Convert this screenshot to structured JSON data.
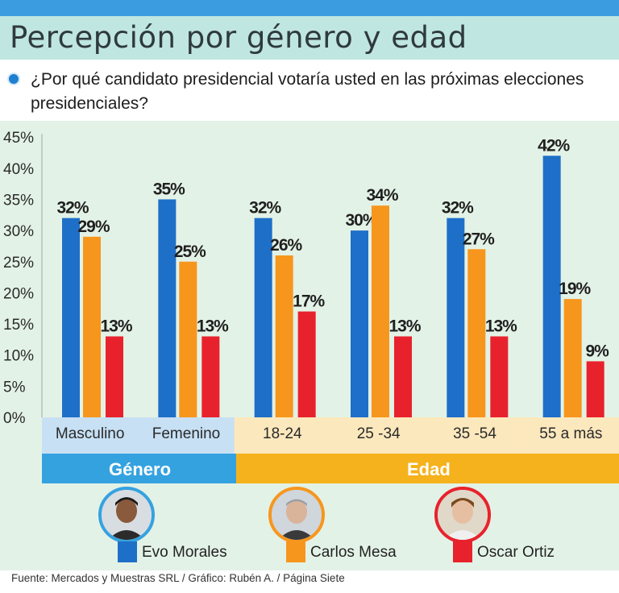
{
  "title": "Percepción por género y edad",
  "question": "¿Por qué candidato presidencial votaría usted en las próximas elecciones presidenciales?",
  "chart_data": {
    "type": "bar",
    "categories": [
      "Masculino",
      "Femenino",
      "18-24",
      "25 -34",
      "35 -54",
      "55 a más"
    ],
    "series": [
      {
        "name": "Evo Morales",
        "color": "#1e6fc8",
        "values": [
          32,
          35,
          32,
          30,
          32,
          42
        ]
      },
      {
        "name": "Carlos Mesa",
        "color": "#f7961d",
        "values": [
          29,
          25,
          26,
          34,
          27,
          19
        ]
      },
      {
        "name": "Oscar Ortiz",
        "color": "#e8222c",
        "values": [
          13,
          13,
          17,
          13,
          13,
          9
        ]
      }
    ],
    "yticks": [
      "0%",
      "5%",
      "10%",
      "15%",
      "20%",
      "25%",
      "30%",
      "35%",
      "40%",
      "45%"
    ],
    "ylim": [
      0,
      45
    ],
    "value_suffix": "%",
    "groups": [
      {
        "label": "Género",
        "color": "#35a2e0",
        "categories": [
          "Masculino",
          "Femenino"
        ]
      },
      {
        "label": "Edad",
        "color": "#f5b21c",
        "categories": [
          "18-24",
          "25 -34",
          "35 -54",
          "55 a más"
        ]
      }
    ],
    "legend_position": "bottom"
  },
  "legend": [
    {
      "name": "Evo Morales",
      "color": "#1e6fc8",
      "ring": "#35a2e0",
      "icon": "evo-morales-photo"
    },
    {
      "name": "Carlos Mesa",
      "color": "#f7961d",
      "ring": "#f7961d",
      "icon": "carlos-mesa-photo"
    },
    {
      "name": "Oscar Ortiz",
      "color": "#e8222c",
      "ring": "#e8222c",
      "icon": "oscar-ortiz-photo"
    }
  ],
  "source": "Fuente: Mercados y Muestras SRL / Gráfico: Rubén A. / Página Siete"
}
